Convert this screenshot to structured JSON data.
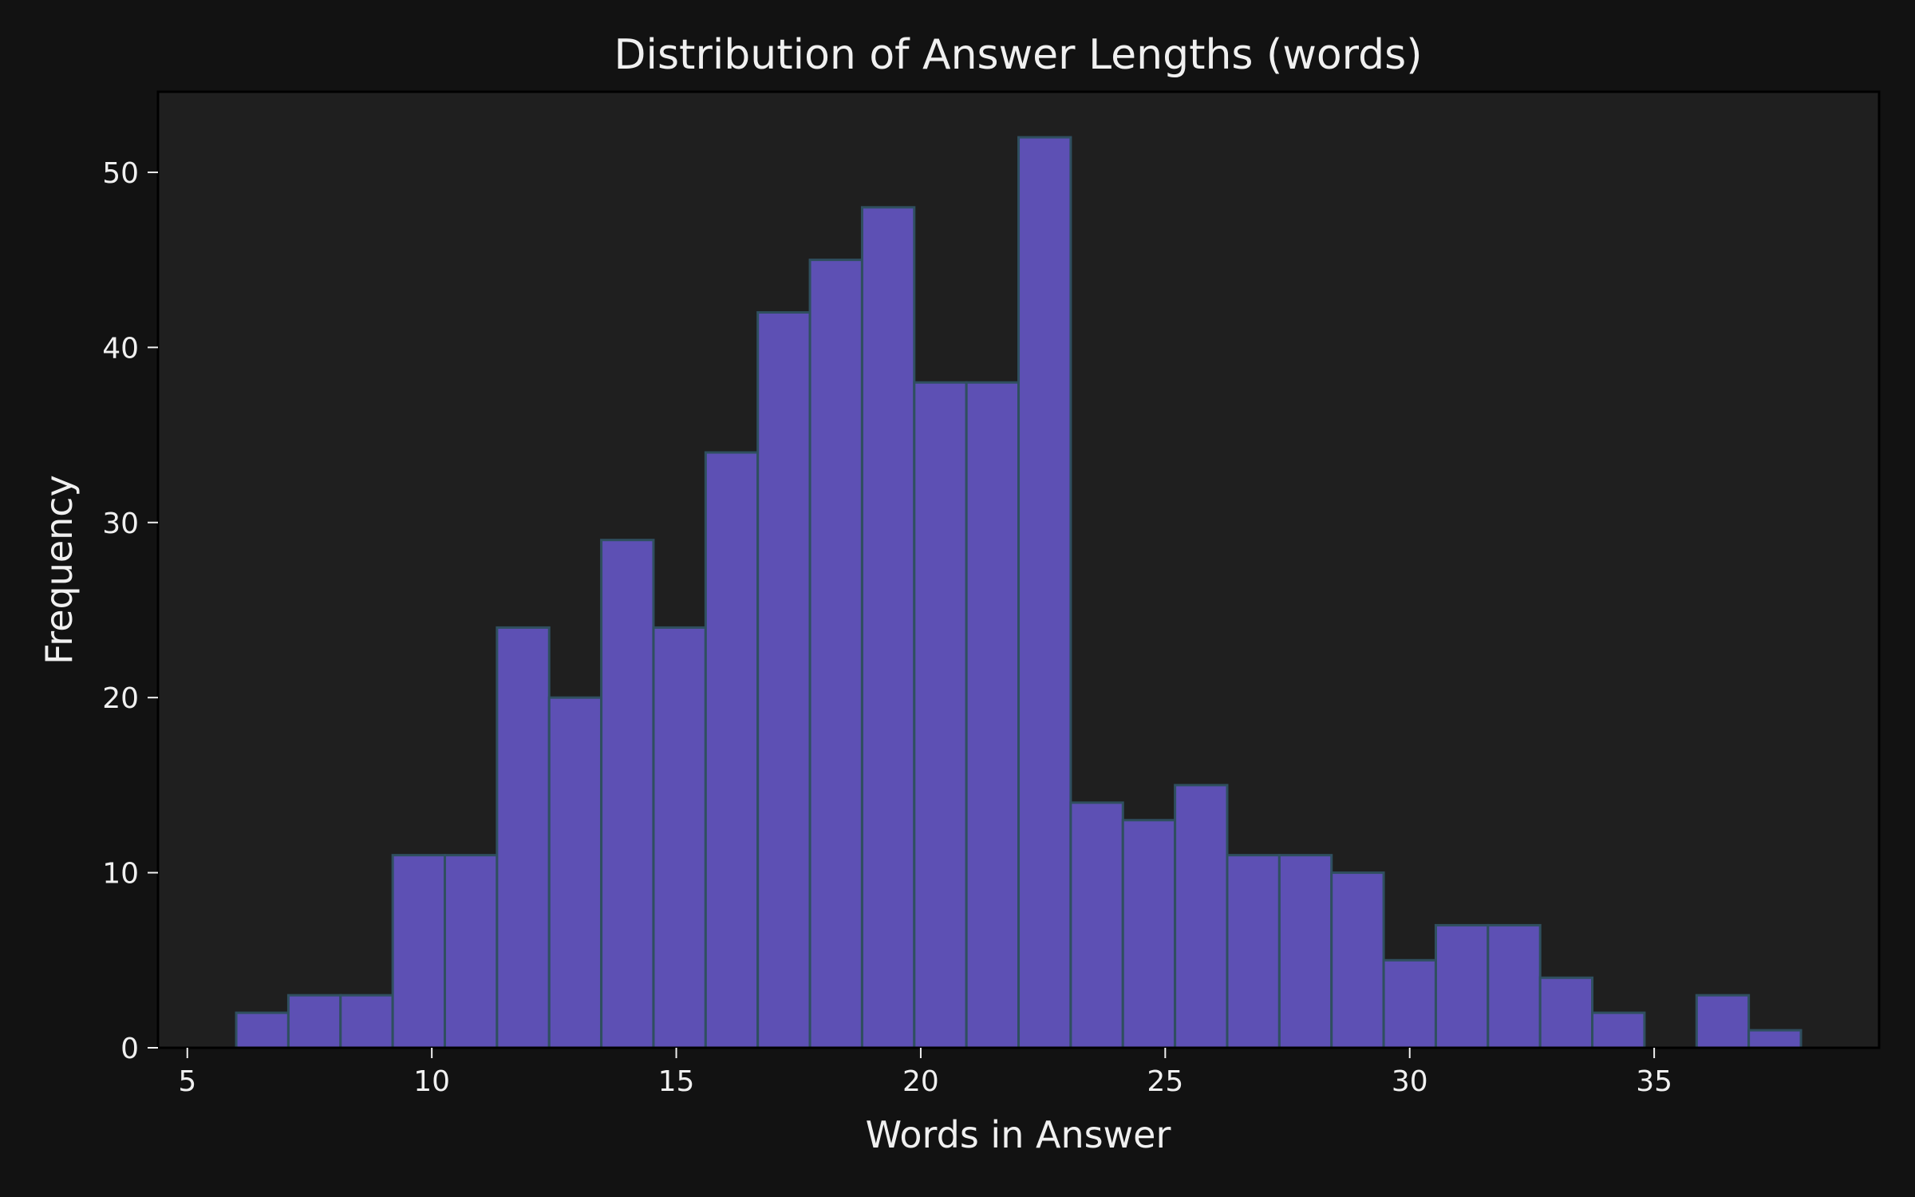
{
  "chart_data": {
    "type": "bar",
    "title": "Distribution of Answer Lengths (words)",
    "xlabel": "Words in Answer",
    "ylabel": "Frequency",
    "bin_start": 6.0,
    "bin_width": 1.0667,
    "values": [
      2,
      3,
      3,
      11,
      11,
      24,
      20,
      29,
      24,
      34,
      42,
      45,
      48,
      38,
      38,
      52,
      14,
      13,
      15,
      11,
      11,
      10,
      5,
      7,
      7,
      4,
      2,
      0,
      3,
      1
    ],
    "xlim": [
      4.4,
      39.6
    ],
    "ylim": [
      0,
      54.6
    ],
    "x_ticks": [
      5,
      10,
      15,
      20,
      25,
      30,
      35
    ],
    "y_ticks": [
      0,
      10,
      20,
      30,
      40,
      50
    ],
    "grid": false,
    "legend": false,
    "colors": {
      "figure_background": "#121212",
      "plot_background": "#1f1f1f",
      "bar_fill": "#5d50b4",
      "bar_edge": "#2f4f5f",
      "text": "#f0f0f0",
      "axes_edge": "#000000"
    }
  }
}
